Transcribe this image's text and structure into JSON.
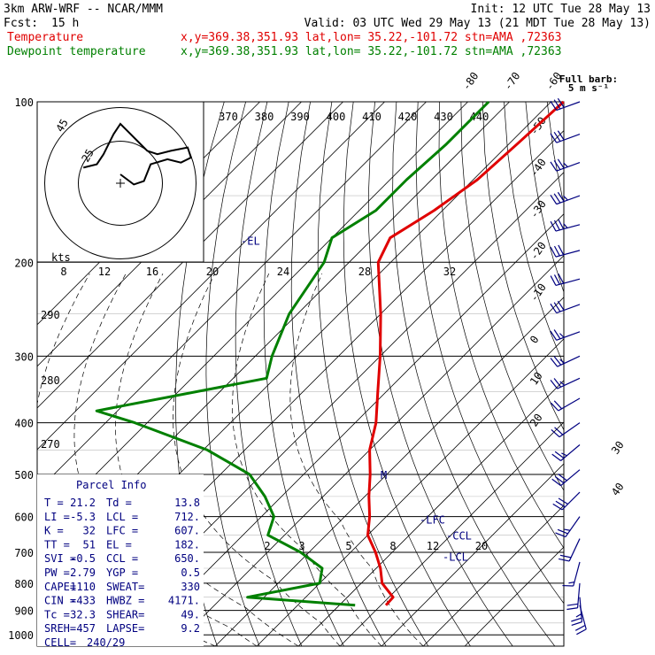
{
  "header": {
    "model": "3km ARW-WRF -- NCAR/MMM",
    "init": "Init: 12 UTC Tue 28 May 13",
    "fcst_label": "Fcst:",
    "fcst_value": "15 h",
    "valid": "Valid: 03 UTC Wed 29 May 13 (21 MDT Tue 28 May 13)"
  },
  "legend": [
    {
      "label": "Temperature",
      "info": "x,y=369.38,351.93   lat,lon= 35.22,-101.72  stn=AMA ,72363",
      "color": "#e00000"
    },
    {
      "label": "Dewpoint temperature",
      "info": "x,y=369.38,351.93   lat,lon= 35.22,-101.72  stn=AMA ,72363",
      "color": "#008000"
    }
  ],
  "barb_legend": {
    "line1": "Full barb:",
    "line2": "5 m s⁻¹"
  },
  "hodograph_labels": {
    "ring_outer": "45",
    "ring_inner": "25",
    "kts": "kts"
  },
  "parcel_info": {
    "title": "Parcel Info",
    "rows": [
      [
        "T",
        "21.2",
        "Td",
        "13.8"
      ],
      [
        "LI",
        "-5.3",
        "LCL",
        "712."
      ],
      [
        "K",
        "32",
        "LFC",
        "607."
      ],
      [
        "TT",
        "51",
        "EL",
        "182."
      ],
      [
        "SVI",
        "-0.5",
        "CCL",
        "650."
      ],
      [
        "PW",
        "2.79",
        "YGP",
        "0.5"
      ],
      [
        "CAPE",
        "1110",
        "SWEAT",
        "330"
      ],
      [
        "CIN",
        "-433",
        "HWBZ",
        "4171."
      ],
      [
        "Tc",
        "32.3",
        "SHEAR",
        "49."
      ],
      [
        "SREH",
        "457",
        "LAPSE",
        "9.2"
      ],
      [
        "CELL",
        "240/29",
        "",
        ""
      ]
    ]
  },
  "level_markers": [
    {
      "label": "-EL",
      "p": 182
    },
    {
      "label": "-LFC",
      "p": 607
    },
    {
      "label": "-CCL",
      "p": 650
    },
    {
      "label": "-LCL",
      "p": 712
    },
    {
      "label": "M",
      "p": 500
    }
  ],
  "chart_data": {
    "type": "line",
    "subtype": "skew-T log-p diagram",
    "y_axis": {
      "label": "pressure (hPa)",
      "ticks": [
        100,
        200,
        300,
        400,
        500,
        600,
        700,
        800,
        900,
        1000
      ],
      "scale": "log"
    },
    "isotherm_labels": [
      -80,
      -70,
      -60,
      -50,
      -40,
      -30,
      -20,
      -10,
      0,
      10,
      20,
      30,
      40
    ],
    "theta_labels": [
      370,
      380,
      390,
      400,
      410,
      420,
      430,
      440
    ],
    "dry_adiabat_labels": [
      290,
      280,
      270
    ],
    "mixing_ratio_upper_labels": [
      8,
      12,
      16,
      20,
      24,
      28,
      32
    ],
    "mixing_ratio_lower_labels": [
      2,
      3,
      5,
      8,
      12,
      20
    ],
    "series": [
      {
        "name": "Temperature",
        "color": "#e00000",
        "points": [
          [
            100,
            -57
          ],
          [
            120,
            -58
          ],
          [
            140,
            -59
          ],
          [
            160,
            -62
          ],
          [
            180,
            -66
          ],
          [
            200,
            -63
          ],
          [
            250,
            -50
          ],
          [
            300,
            -40
          ],
          [
            350,
            -32
          ],
          [
            400,
            -25
          ],
          [
            450,
            -20
          ],
          [
            500,
            -14
          ],
          [
            550,
            -9
          ],
          [
            600,
            -4
          ],
          [
            650,
            0
          ],
          [
            700,
            6
          ],
          [
            750,
            11
          ],
          [
            800,
            15
          ],
          [
            850,
            21
          ],
          [
            880,
            21.2
          ]
        ]
      },
      {
        "name": "Dewpoint temperature",
        "color": "#008000",
        "points": [
          [
            100,
            -75
          ],
          [
            120,
            -75
          ],
          [
            140,
            -76
          ],
          [
            160,
            -76
          ],
          [
            180,
            -80
          ],
          [
            200,
            -76
          ],
          [
            250,
            -72
          ],
          [
            300,
            -66
          ],
          [
            330,
            -62
          ],
          [
            380,
            -95
          ],
          [
            400,
            -83
          ],
          [
            450,
            -59
          ],
          [
            500,
            -43
          ],
          [
            550,
            -34
          ],
          [
            600,
            -27
          ],
          [
            650,
            -24
          ],
          [
            700,
            -12
          ],
          [
            750,
            -3
          ],
          [
            800,
            0
          ],
          [
            850,
            -14
          ],
          [
            880,
            13.8
          ]
        ]
      }
    ],
    "hodograph": {
      "rings": [
        25,
        45
      ],
      "points": [
        [
          0,
          0
        ],
        [
          8,
          6
        ],
        [
          14,
          4
        ],
        [
          18,
          -6
        ],
        [
          28,
          -9
        ],
        [
          36,
          -7
        ],
        [
          42,
          -10
        ],
        [
          40,
          -16
        ],
        [
          30,
          -14
        ],
        [
          22,
          -12
        ],
        [
          16,
          -14
        ],
        [
          10,
          -20
        ],
        [
          4,
          -26
        ],
        [
          0,
          -30
        ],
        [
          -4,
          -24
        ],
        [
          -10,
          -12
        ],
        [
          -14,
          -6
        ],
        [
          -22,
          -4
        ]
      ]
    },
    "wind_barbs": [
      {
        "p": 100,
        "spd": 30,
        "dir": 250
      },
      {
        "p": 115,
        "spd": 30,
        "dir": 250
      },
      {
        "p": 130,
        "spd": 35,
        "dir": 250
      },
      {
        "p": 150,
        "spd": 35,
        "dir": 250
      },
      {
        "p": 170,
        "spd": 35,
        "dir": 255
      },
      {
        "p": 190,
        "spd": 30,
        "dir": 255
      },
      {
        "p": 215,
        "spd": 30,
        "dir": 255
      },
      {
        "p": 240,
        "spd": 30,
        "dir": 250
      },
      {
        "p": 270,
        "spd": 25,
        "dir": 250
      },
      {
        "p": 300,
        "spd": 25,
        "dir": 245
      },
      {
        "p": 330,
        "spd": 25,
        "dir": 245
      },
      {
        "p": 360,
        "spd": 20,
        "dir": 240
      },
      {
        "p": 400,
        "spd": 20,
        "dir": 235
      },
      {
        "p": 440,
        "spd": 25,
        "dir": 230
      },
      {
        "p": 490,
        "spd": 30,
        "dir": 230
      },
      {
        "p": 540,
        "spd": 30,
        "dir": 225
      },
      {
        "p": 600,
        "spd": 25,
        "dir": 215
      },
      {
        "p": 660,
        "spd": 20,
        "dir": 205
      },
      {
        "p": 730,
        "spd": 15,
        "dir": 195
      },
      {
        "p": 800,
        "spd": 20,
        "dir": 185
      },
      {
        "p": 850,
        "spd": 25,
        "dir": 175
      },
      {
        "p": 880,
        "spd": 20,
        "dir": 165
      }
    ]
  },
  "colors": {
    "temperature": "#e00000",
    "dewpoint": "#008000",
    "wind": "#000080",
    "grid": "#000000"
  }
}
